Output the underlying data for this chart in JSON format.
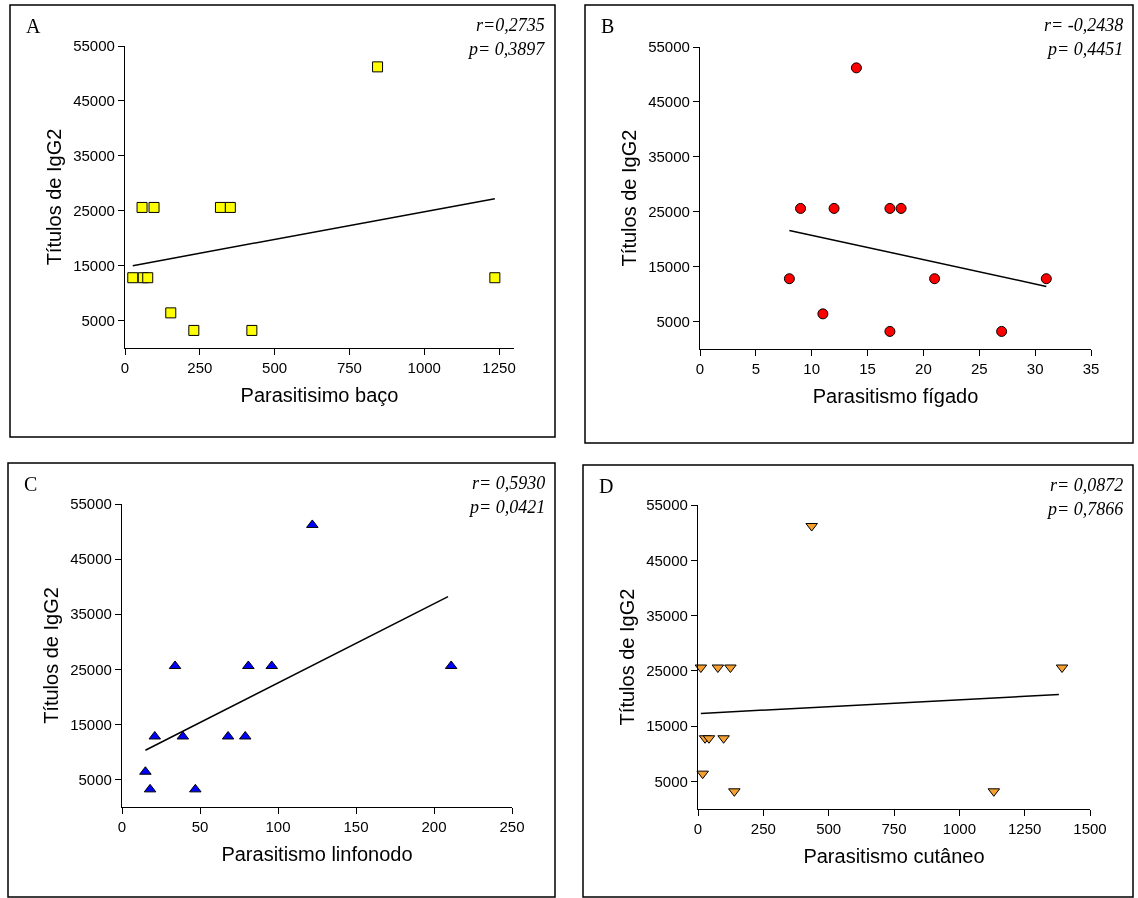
{
  "chart_data": [
    {
      "type": "scatter",
      "xlabel": "Parasitisimo baço",
      "ylabel": "Títulos de IgG2",
      "annotations": [
        "A",
        "r=0,2735",
        "p= 0,3897"
      ],
      "xlim": [
        0,
        1300
      ],
      "xticks": [
        0,
        250,
        500,
        750,
        1000,
        1250
      ],
      "ylim": [
        0,
        55000
      ],
      "yticks": [
        5000,
        15000,
        25000,
        35000,
        45000,
        55000
      ],
      "series": [
        {
          "marker": "square",
          "color": "#ffff00",
          "x": [
            844,
            57,
            97,
            319,
            352,
            26,
            61,
            76,
            1236,
            153,
            230,
            424
          ],
          "values": [
            51200,
            25600,
            25600,
            25600,
            25600,
            12800,
            12800,
            12800,
            12800,
            6400,
            3200,
            3200
          ]
        },
        {
          "type": "line",
          "color": "#000000",
          "x": [
            26,
            1236
          ],
          "values": [
            15000,
            27200
          ]
        }
      ]
    },
    {
      "type": "scatter",
      "xlabel": "Parasitismo fígado",
      "ylabel": "Títulos de IgG2",
      "annotations": [
        "B",
        "r= -0,2438",
        "p= 0,4451"
      ],
      "xlim": [
        0,
        35
      ],
      "xticks": [
        0,
        5,
        10,
        15,
        20,
        25,
        30,
        35
      ],
      "ylim": [
        0,
        55000
      ],
      "yticks": [
        5000,
        15000,
        25000,
        35000,
        45000,
        55000
      ],
      "series": [
        {
          "marker": "circle",
          "color": "#ff0000",
          "x": [
            14,
            9,
            12,
            17,
            18,
            8,
            21,
            31,
            11,
            17,
            27
          ],
          "values": [
            51200,
            25600,
            25600,
            25600,
            25600,
            12800,
            12800,
            12800,
            6400,
            3200,
            3200
          ]
        },
        {
          "type": "line",
          "color": "#000000",
          "x": [
            8,
            31
          ],
          "values": [
            21600,
            11400
          ]
        }
      ]
    },
    {
      "type": "scatter",
      "xlabel": "Parasitismo linfonodo",
      "ylabel": "Títulos de IgG2",
      "annotations": [
        "C",
        "r= 0,5930",
        "p= 0,0421"
      ],
      "xlim": [
        0,
        250
      ],
      "xticks": [
        0,
        50,
        100,
        150,
        200,
        250
      ],
      "ylim": [
        0,
        55000
      ],
      "yticks": [
        5000,
        15000,
        25000,
        35000,
        45000,
        55000
      ],
      "series": [
        {
          "marker": "triangle",
          "color": "#0000ff",
          "x": [
            122,
            34,
            81,
            96,
            211,
            21,
            39,
            68,
            79,
            15,
            18,
            47
          ],
          "values": [
            51200,
            25600,
            25600,
            25600,
            25600,
            12800,
            12800,
            12800,
            12800,
            6400,
            3200,
            3200
          ]
        },
        {
          "type": "line",
          "color": "#000000",
          "x": [
            15,
            209
          ],
          "values": [
            10300,
            38200
          ]
        }
      ]
    },
    {
      "type": "scatter",
      "xlabel": "Parasitismo cutâneo",
      "ylabel": "Títulos de IgG2",
      "annotations": [
        "D",
        "r= 0,0872",
        "p= 0,7866"
      ],
      "xlim": [
        0,
        1500
      ],
      "xticks": [
        0,
        250,
        500,
        750,
        1000,
        1250,
        1500
      ],
      "ylim": [
        0,
        55000
      ],
      "yticks": [
        5000,
        15000,
        25000,
        35000,
        45000,
        55000
      ],
      "series": [
        {
          "marker": "triangle-down",
          "color": "#f7a030",
          "x": [
            435,
            11,
            76,
            124,
            1393,
            27,
            42,
            98,
            18,
            139,
            1132
          ],
          "values": [
            51200,
            25600,
            25600,
            25600,
            25600,
            12800,
            12800,
            12800,
            6400,
            3200,
            3200
          ]
        },
        {
          "type": "line",
          "color": "#000000",
          "x": [
            11,
            1381
          ],
          "values": [
            17300,
            20700
          ]
        }
      ]
    }
  ]
}
